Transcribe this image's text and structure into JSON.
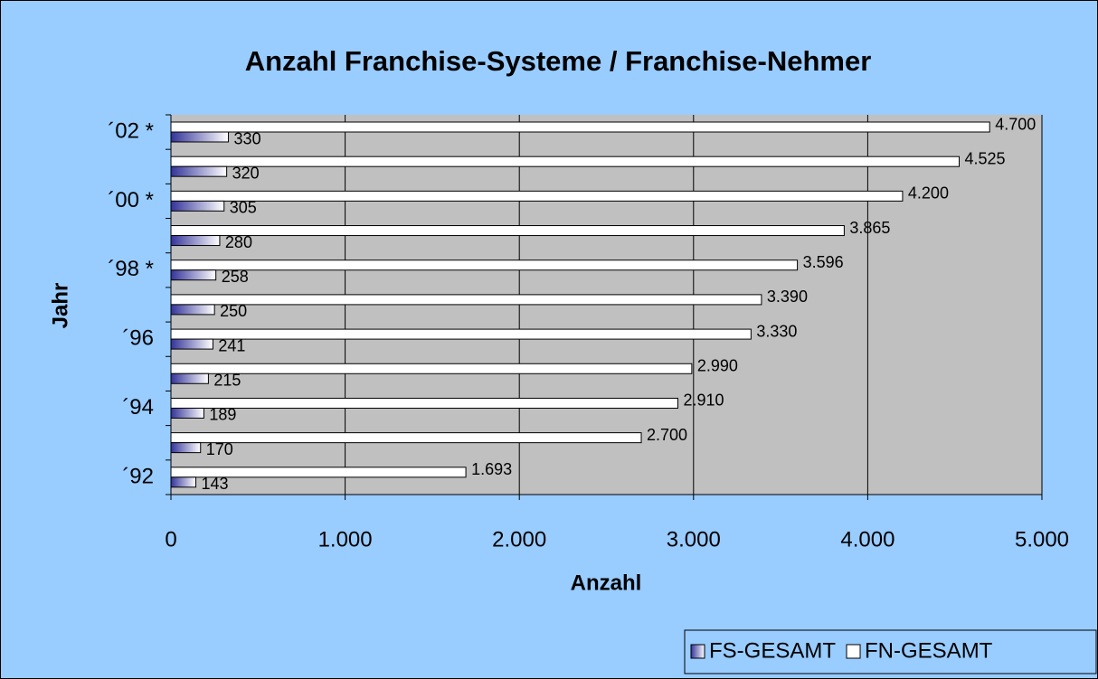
{
  "chart_data": {
    "type": "hbar",
    "title": "Anzahl Franchise-Systeme / Franchise-Nehmer",
    "x_label": "Anzahl",
    "y_label": "Jahr",
    "categories": [
      "´92",
      null,
      "´94",
      null,
      "´96",
      null,
      "´98 *",
      null,
      "´00 *",
      null,
      "´02 *"
    ],
    "series": [
      {
        "name": "FS-GESAMT",
        "color": "#333399",
        "gradient": true,
        "values": [
          143,
          170,
          189,
          215,
          241,
          250,
          258,
          280,
          305,
          320,
          330
        ]
      },
      {
        "name": "FN-GESAMT",
        "color": "#ffffff",
        "values": [
          1693,
          2700,
          2910,
          2990,
          3330,
          3390,
          3596,
          3865,
          4200,
          4525,
          4700
        ],
        "value_labels": [
          "1.693",
          "2.700",
          "2.910",
          "2.990",
          "3.330",
          "3.390",
          "3.596",
          "3.865",
          "4.200",
          "4.525",
          "4.700"
        ]
      }
    ],
    "xlim": [
      0,
      5000
    ],
    "xticks": [
      0,
      {
        "value": 1000,
        "label": "1.000"
      },
      {
        "value": 2000,
        "label": "2.000"
      },
      {
        "value": 3000,
        "label": "3.000"
      },
      {
        "value": 4000,
        "label": "4.000"
      },
      {
        "value": 5000,
        "label": "5.000"
      }
    ],
    "grid": true,
    "legend": "bottom-right"
  }
}
